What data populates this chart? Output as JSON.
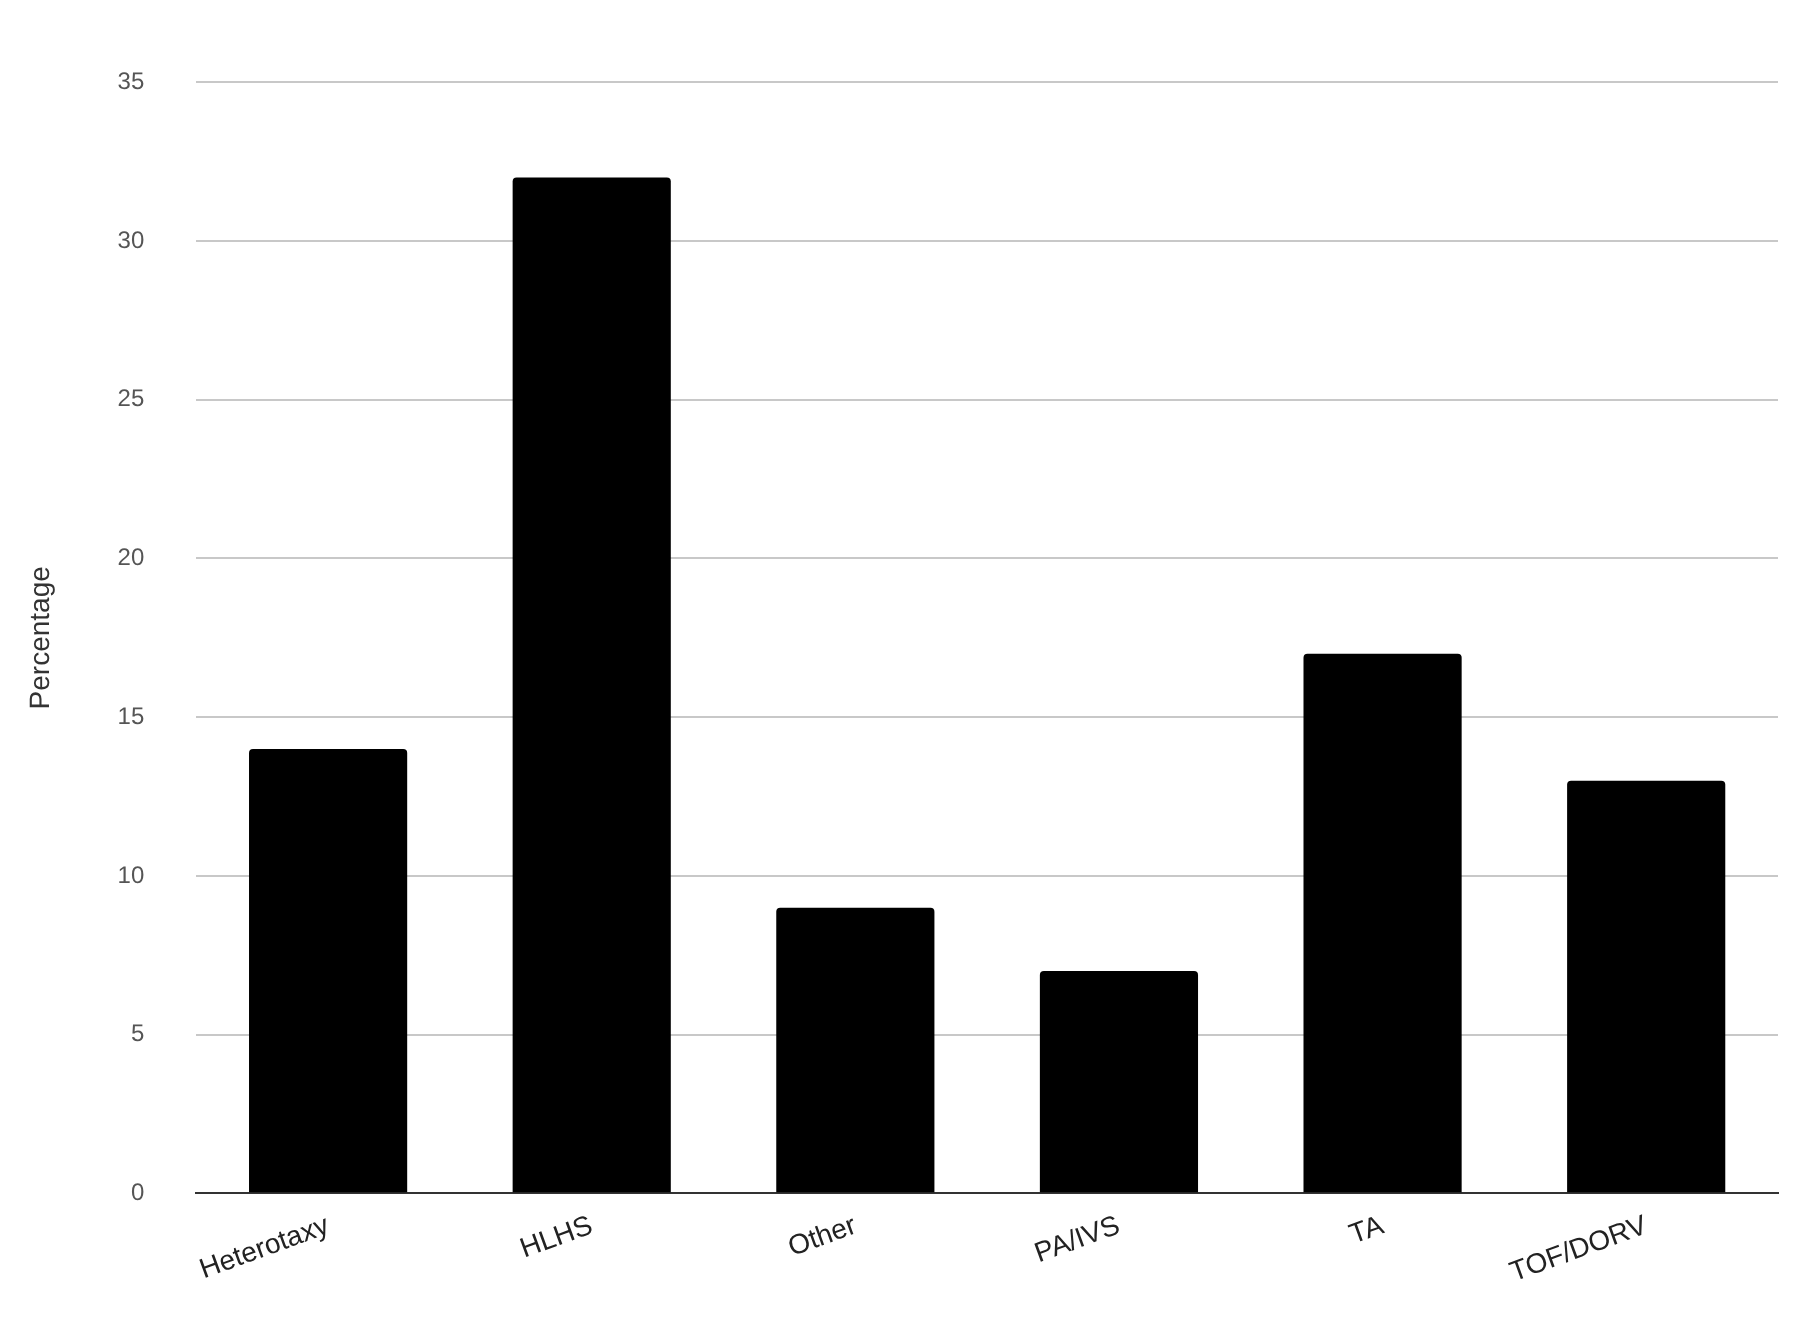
{
  "chart_data": {
    "type": "bar",
    "ylabel": "Percentage",
    "categories": [
      "Heterotaxy",
      "HLHS",
      "Other",
      "PA/IVS",
      "TA",
      "TOF/DORV"
    ],
    "values": [
      14,
      32,
      9,
      7,
      17,
      13
    ],
    "color": "#000000",
    "ylim": [
      0,
      35
    ],
    "yticks": [
      0,
      5,
      10,
      15,
      20,
      25,
      30,
      35
    ],
    "grid": "y",
    "legend": false
  }
}
